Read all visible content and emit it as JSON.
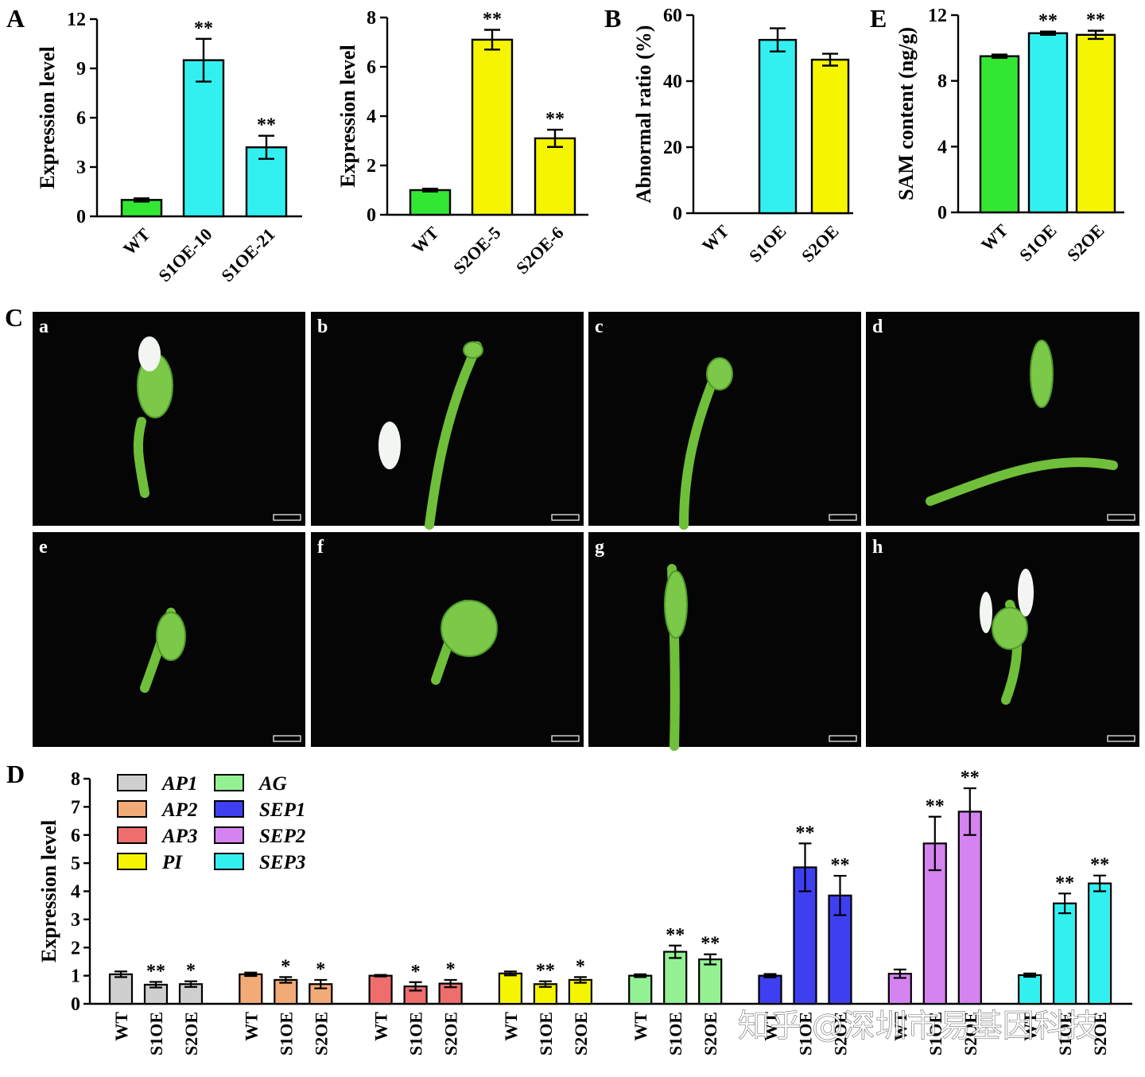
{
  "colors": {
    "green": "#33e633",
    "cyan": "#33f0f0",
    "yellow": "#f5f500",
    "ap1": "#cfcfcf",
    "ap2": "#f2ab77",
    "ap3": "#ee6e6e",
    "pi": "#f5f500",
    "ag": "#93f193",
    "sep1": "#3f3ff2",
    "sep2": "#d583f0",
    "sep3": "#33f0f0",
    "photo_bg": "#050505"
  },
  "panel_letters": {
    "A": "A",
    "B": "B",
    "C": "C",
    "D": "D",
    "E": "E"
  },
  "photos": {
    "labels": [
      "a",
      "b",
      "c",
      "d",
      "e",
      "f",
      "g",
      "h"
    ]
  },
  "watermark": "知乎 @深圳市易基因科技",
  "chart_data": [
    {
      "id": "A1",
      "type": "bar",
      "ylabel": "Expression level",
      "ylim": [
        0,
        12
      ],
      "yticks": [
        0,
        3,
        6,
        9,
        12
      ],
      "categories": [
        "WT",
        "S1OE-10",
        "S1OE-21"
      ],
      "values": [
        1.0,
        9.5,
        4.2
      ],
      "errors": [
        0.1,
        1.3,
        0.7
      ],
      "significance": [
        "",
        "**",
        "**"
      ],
      "colors": [
        "#33e633",
        "#33f0f0",
        "#33f0f0"
      ]
    },
    {
      "id": "A2",
      "type": "bar",
      "ylabel": "Expression level",
      "ylim": [
        0,
        8
      ],
      "yticks": [
        0,
        2,
        4,
        6,
        8
      ],
      "categories": [
        "WT",
        "S2OE-5",
        "S2OE-6"
      ],
      "values": [
        1.0,
        7.1,
        3.1
      ],
      "errors": [
        0.06,
        0.4,
        0.35
      ],
      "significance": [
        "",
        "**",
        "**"
      ],
      "colors": [
        "#33e633",
        "#f5f500",
        "#f5f500"
      ]
    },
    {
      "id": "B",
      "type": "bar",
      "ylabel": "Abnormal  ratio (%)",
      "ylim": [
        0,
        60
      ],
      "yticks": [
        0,
        20,
        40,
        60
      ],
      "categories": [
        "WT",
        "S1OE",
        "S2OE"
      ],
      "values": [
        0,
        52.5,
        46.5
      ],
      "errors": [
        0,
        3.5,
        1.8
      ],
      "significance": [
        "",
        "",
        ""
      ],
      "colors": [
        "#33e633",
        "#33f0f0",
        "#f5f500"
      ]
    },
    {
      "id": "E",
      "type": "bar",
      "ylabel": "SAM content (ng/g)",
      "ylim": [
        0,
        12
      ],
      "yticks": [
        0,
        4,
        8,
        12
      ],
      "categories": [
        "WT",
        "S1OE",
        "S2OE"
      ],
      "values": [
        9.5,
        10.9,
        10.8
      ],
      "errors": [
        0.1,
        0.1,
        0.25
      ],
      "significance": [
        "",
        "**",
        "**"
      ],
      "colors": [
        "#33e633",
        "#33f0f0",
        "#f5f500"
      ]
    },
    {
      "id": "D",
      "type": "bar",
      "ylabel": "Expression level",
      "ylim": [
        0,
        8
      ],
      "yticks": [
        0,
        1,
        2,
        3,
        4,
        5,
        6,
        7,
        8
      ],
      "categories": [
        "WT",
        "S1OE",
        "S2OE"
      ],
      "legend_position": "top-left",
      "series": [
        {
          "name": "AP1",
          "color": "#cfcfcf",
          "values": [
            1.05,
            0.68,
            0.7
          ],
          "errors": [
            0.1,
            0.1,
            0.1
          ],
          "significance": [
            "",
            "**",
            "*"
          ]
        },
        {
          "name": "AP2",
          "color": "#f2ab77",
          "values": [
            1.05,
            0.85,
            0.7
          ],
          "errors": [
            0.06,
            0.1,
            0.15
          ],
          "significance": [
            "",
            "*",
            "*"
          ]
        },
        {
          "name": "AP3",
          "color": "#ee6e6e",
          "values": [
            1.0,
            0.62,
            0.72
          ],
          "errors": [
            0.03,
            0.15,
            0.13
          ],
          "significance": [
            "",
            "*",
            "*"
          ]
        },
        {
          "name": "PI",
          "color": "#f5f500",
          "values": [
            1.08,
            0.7,
            0.85
          ],
          "errors": [
            0.07,
            0.1,
            0.1
          ],
          "significance": [
            "",
            "**",
            "*"
          ]
        },
        {
          "name": "AG",
          "color": "#93f193",
          "values": [
            1.0,
            1.85,
            1.58
          ],
          "errors": [
            0.05,
            0.22,
            0.18
          ],
          "significance": [
            "",
            "**",
            "**"
          ]
        },
        {
          "name": "SEP1",
          "color": "#3f3ff2",
          "values": [
            1.0,
            4.85,
            3.85
          ],
          "errors": [
            0.06,
            0.85,
            0.7
          ],
          "significance": [
            "",
            "**",
            "**"
          ]
        },
        {
          "name": "SEP2",
          "color": "#d583f0",
          "values": [
            1.07,
            5.7,
            6.83
          ],
          "errors": [
            0.15,
            0.95,
            0.83
          ],
          "significance": [
            "",
            "**",
            "**"
          ]
        },
        {
          "name": "SEP3",
          "color": "#33f0f0",
          "values": [
            1.02,
            3.57,
            4.28
          ],
          "errors": [
            0.06,
            0.35,
            0.28
          ],
          "significance": [
            "",
            "**",
            "**"
          ]
        }
      ]
    }
  ]
}
